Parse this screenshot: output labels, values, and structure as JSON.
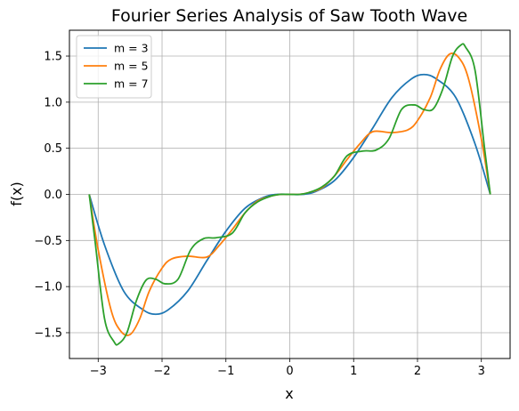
{
  "chart_data": {
    "type": "line",
    "title": "Fourier Series Analysis of Saw Tooth Wave",
    "xlabel": "x",
    "ylabel": "f(x)",
    "xlim": [
      -3.45,
      3.45
    ],
    "ylim": [
      -1.78,
      1.78
    ],
    "xticks": [
      -3,
      -2,
      -1,
      0,
      1,
      2,
      3
    ],
    "xtick_labels": [
      "−3",
      "−2",
      "−1",
      "0",
      "1",
      "2",
      "3"
    ],
    "yticks": [
      -1.5,
      -1.0,
      -0.5,
      0.0,
      0.5,
      1.0,
      1.5
    ],
    "ytick_labels": [
      "−1.5",
      "−1.0",
      "−0.5",
      "0.0",
      "0.5",
      "1.0",
      "1.5"
    ],
    "grid": true,
    "legend_position": "upper-left",
    "x_range": [
      -3.14159,
      3.14159
    ],
    "series": [
      {
        "name": "m = 3",
        "color": "#1f77b4",
        "x": [
          -3.14,
          -2.9,
          -2.6,
          -2.3,
          -2.1,
          -1.9,
          -1.6,
          -1.3,
          -1.0,
          -0.7,
          -0.4,
          -0.2,
          0.0,
          0.2,
          0.4,
          0.7,
          1.0,
          1.3,
          1.6,
          1.9,
          2.1,
          2.3,
          2.6,
          2.9,
          3.14
        ],
        "y": [
          0.0,
          -0.55,
          -1.05,
          -1.25,
          -1.3,
          -1.25,
          -1.05,
          -0.72,
          -0.4,
          -0.15,
          -0.03,
          0.0,
          0.0,
          0.0,
          0.03,
          0.15,
          0.4,
          0.72,
          1.05,
          1.25,
          1.3,
          1.25,
          1.05,
          0.55,
          0.0
        ]
      },
      {
        "name": "m = 5",
        "color": "#ff7f0e",
        "x": [
          -3.14,
          -3.0,
          -2.8,
          -2.65,
          -2.5,
          -2.35,
          -2.2,
          -2.0,
          -1.85,
          -1.6,
          -1.3,
          -1.1,
          -0.9,
          -0.7,
          -0.5,
          -0.3,
          -0.15,
          0.0,
          0.15,
          0.3,
          0.5,
          0.7,
          0.9,
          1.1,
          1.3,
          1.6,
          1.85,
          2.0,
          2.2,
          2.35,
          2.5,
          2.65,
          2.8,
          3.0,
          3.14
        ],
        "y": [
          0.0,
          -0.6,
          -1.25,
          -1.48,
          -1.52,
          -1.35,
          -1.05,
          -0.8,
          -0.7,
          -0.67,
          -0.68,
          -0.55,
          -0.38,
          -0.2,
          -0.07,
          -0.02,
          0.0,
          0.0,
          0.0,
          0.02,
          0.07,
          0.2,
          0.38,
          0.55,
          0.68,
          0.67,
          0.7,
          0.8,
          1.05,
          1.35,
          1.52,
          1.48,
          1.25,
          0.6,
          0.0
        ]
      },
      {
        "name": "m = 7",
        "color": "#2ca02c",
        "x": [
          -3.14,
          -3.05,
          -2.9,
          -2.75,
          -2.68,
          -2.55,
          -2.4,
          -2.25,
          -2.1,
          -1.95,
          -1.75,
          -1.55,
          -1.35,
          -1.15,
          -0.9,
          -0.7,
          -0.5,
          -0.3,
          -0.15,
          0.0,
          0.15,
          0.3,
          0.5,
          0.7,
          0.9,
          1.15,
          1.35,
          1.55,
          1.75,
          1.95,
          2.1,
          2.25,
          2.4,
          2.55,
          2.68,
          2.75,
          2.9,
          3.05,
          3.14
        ],
        "y": [
          0.0,
          -0.5,
          -1.35,
          -1.6,
          -1.62,
          -1.5,
          -1.15,
          -0.93,
          -0.92,
          -0.97,
          -0.92,
          -0.6,
          -0.48,
          -0.47,
          -0.42,
          -0.2,
          -0.08,
          -0.02,
          0.0,
          0.0,
          0.0,
          0.02,
          0.08,
          0.2,
          0.42,
          0.47,
          0.48,
          0.6,
          0.92,
          0.97,
          0.92,
          0.93,
          1.15,
          1.5,
          1.62,
          1.6,
          1.35,
          0.5,
          0.0
        ]
      }
    ]
  }
}
